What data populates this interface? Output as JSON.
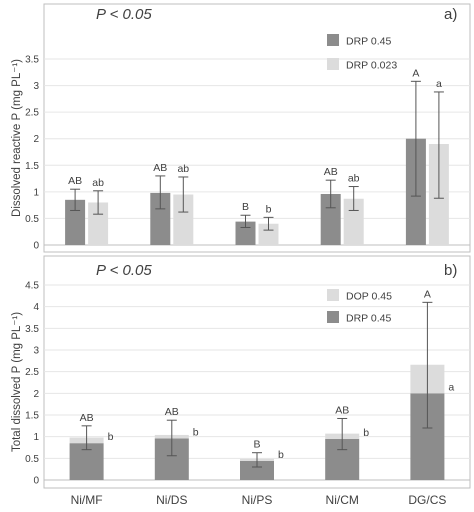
{
  "chart_data": [
    {
      "type": "bar",
      "panel_label": "a)",
      "significance": "P < 0.05",
      "ylabel": "Dissolved reactive P (mg PL⁻¹)",
      "ylim": [
        0,
        3.5
      ],
      "yticks": [
        "0",
        "0.5",
        "1",
        "1.5",
        "2",
        "2.5",
        "3",
        "3.5"
      ],
      "categories": [
        "Ni/MF",
        "Ni/DS",
        "Ni/PS",
        "Ni/CM",
        "DG/CS"
      ],
      "legend_position": "top-right",
      "series": [
        {
          "name": "DRP 0.45",
          "color": "#8c8c8c",
          "values": [
            0.85,
            0.98,
            0.44,
            0.96,
            2.0
          ],
          "error_low": [
            0.65,
            0.68,
            0.33,
            0.7,
            0.92
          ],
          "error_high": [
            1.05,
            1.3,
            0.56,
            1.22,
            3.08
          ],
          "letters": [
            "AB",
            "AB",
            "B",
            "AB",
            "A"
          ]
        },
        {
          "name": "DRP 0.023",
          "color": "#dcdcdc",
          "values": [
            0.8,
            0.95,
            0.4,
            0.87,
            1.9
          ],
          "error_low": [
            0.58,
            0.62,
            0.28,
            0.65,
            0.88
          ],
          "error_high": [
            1.02,
            1.28,
            0.52,
            1.1,
            2.88
          ],
          "letters": [
            "ab",
            "ab",
            "b",
            "ab",
            "a"
          ]
        }
      ]
    },
    {
      "type": "bar",
      "stacked": true,
      "panel_label": "b)",
      "significance": "P < 0.05",
      "ylabel": "Total dissolved P (mg PL⁻¹)",
      "ylim": [
        0,
        4.5
      ],
      "yticks": [
        "0",
        "0.5",
        "1",
        "1.5",
        "2",
        "2.5",
        "3",
        "3.5",
        "4",
        "4.5"
      ],
      "categories": [
        "Ni/MF",
        "Ni/DS",
        "Ni/PS",
        "Ni/CM",
        "DG/CS"
      ],
      "legend_position": "top-right",
      "series": [
        {
          "name": "DRP 0.45",
          "color": "#8c8c8c",
          "values": [
            0.85,
            0.96,
            0.44,
            0.95,
            2.0
          ]
        },
        {
          "name": "DOP 0.45",
          "color": "#dcdcdc",
          "values": [
            0.13,
            0.08,
            0.05,
            0.12,
            0.66
          ]
        }
      ],
      "total_error_low": [
        0.7,
        0.56,
        0.3,
        0.7,
        1.2
      ],
      "total_error_high": [
        1.25,
        1.38,
        0.63,
        1.42,
        4.1
      ],
      "letters_total": [
        "AB",
        "AB",
        "B",
        "AB",
        "A"
      ],
      "letters_drp": [
        "b",
        "b",
        "b",
        "b",
        "a"
      ]
    }
  ]
}
